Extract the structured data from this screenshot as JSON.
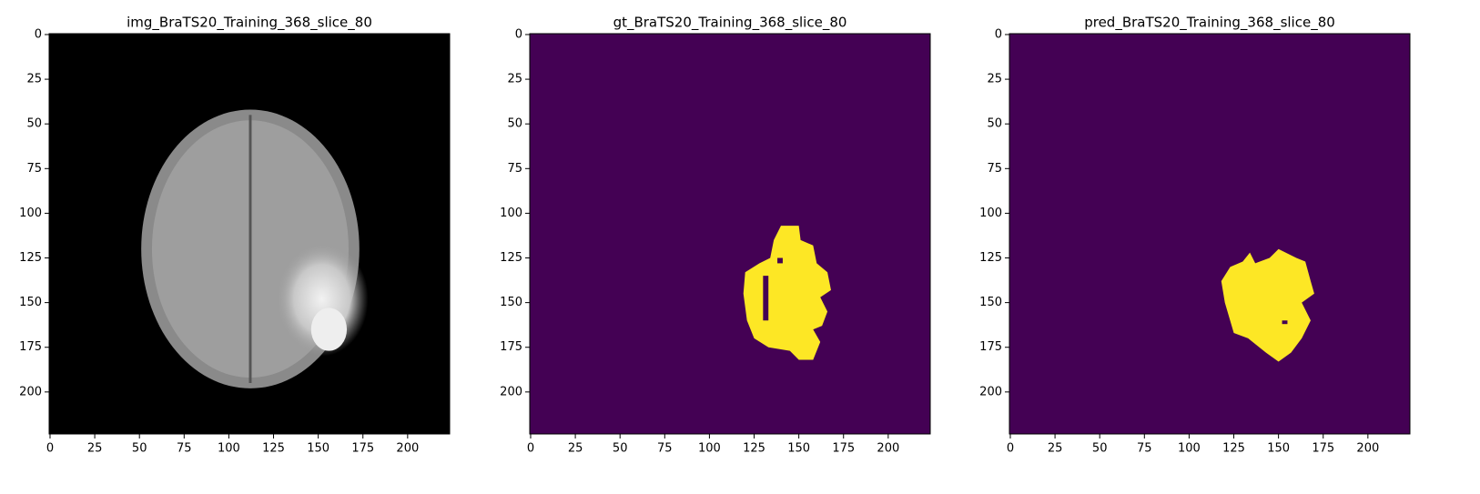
{
  "chart_data": [
    {
      "type": "image",
      "title": "img_BraTS20_Training_368_slice_80",
      "xlim": [
        -0.5,
        223.5
      ],
      "ylim": [
        223.5,
        -0.5
      ],
      "xticks": [
        0,
        25,
        50,
        75,
        100,
        125,
        150,
        175,
        200
      ],
      "yticks": [
        0,
        25,
        50,
        75,
        100,
        125,
        150,
        175,
        200
      ]
    },
    {
      "type": "image",
      "title": "gt_BraTS20_Training_368_slice_80",
      "xlim": [
        -0.5,
        223.5
      ],
      "ylim": [
        223.5,
        -0.5
      ],
      "xticks": [
        0,
        25,
        50,
        75,
        100,
        125,
        150,
        175,
        200
      ],
      "yticks": [
        0,
        25,
        50,
        75,
        100,
        125,
        150,
        175,
        200
      ]
    },
    {
      "type": "image",
      "title": "pred_BraTS20_Training_368_slice_80",
      "xlim": [
        -0.5,
        223.5
      ],
      "ylim": [
        223.5,
        -0.5
      ],
      "xticks": [
        0,
        25,
        50,
        75,
        100,
        125,
        150,
        175,
        200
      ],
      "yticks": [
        0,
        25,
        50,
        75,
        100,
        125,
        150,
        175,
        200
      ]
    }
  ]
}
